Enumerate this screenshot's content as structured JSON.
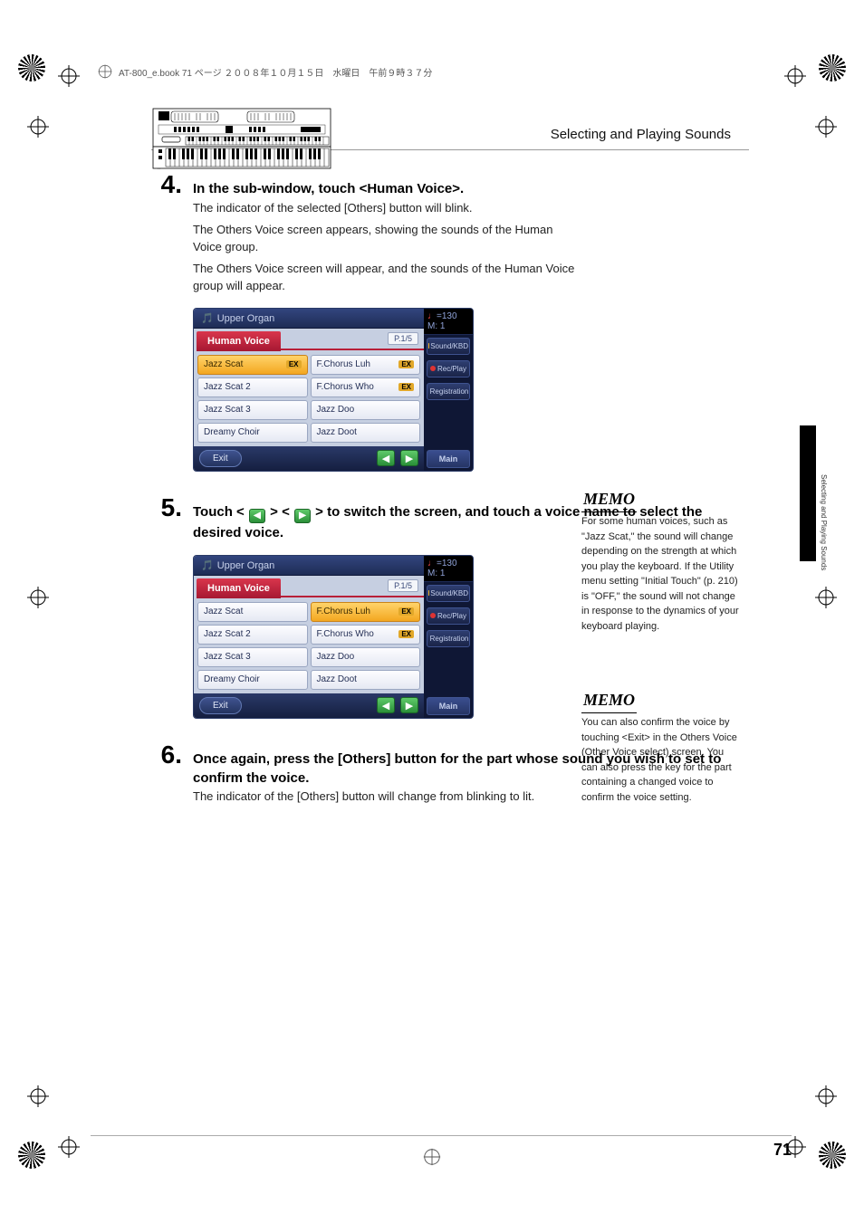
{
  "header": {
    "file_info": "AT-800_e.book  71 ページ  ２００８年１０月１５日　水曜日　午前９時３７分"
  },
  "section_title": "Selecting and Playing Sounds",
  "side_tab_text": "Selecting and Playing Sounds",
  "steps": [
    {
      "num": "4.",
      "title": "In the sub-window, touch <Human Voice>.",
      "body": [
        "The indicator of the selected [Others] button will blink.",
        "The Others Voice screen appears, showing the sounds of the Human Voice group.",
        "The Others Voice screen will appear, and the sounds of the Human Voice group will appear."
      ]
    },
    {
      "num": "5.",
      "title_pre": "Touch < ",
      "title_mid": " > < ",
      "title_post": " > to switch the screen, and touch a voice name to select the desired voice.",
      "body": []
    },
    {
      "num": "6.",
      "title": "Once again, press the [Others] button for the part whose sound you wish to set to confirm the voice.",
      "body": [
        "The indicator of the [Others] button will change from blinking to lit."
      ]
    }
  ],
  "screenshot": {
    "header_title": "Upper Organ",
    "tab": "Human Voice",
    "page_indicator": "P.1/5",
    "tempo_note": "♩",
    "tempo_eq": "=130",
    "measure": "M:    1",
    "side_buttons": [
      "Sound/KBD",
      "Rec/Play",
      "Registration",
      "Main"
    ],
    "exit": "Exit",
    "badge": "EX",
    "voices1": {
      "left": [
        "Jazz Scat",
        "Jazz Scat 2",
        "Jazz Scat 3",
        "Dreamy Choir"
      ],
      "right": [
        "F.Chorus Luh",
        "F.Chorus Who",
        "Jazz Doo",
        "Jazz Doot"
      ],
      "active_left": 0,
      "right_badges": [
        0,
        1
      ]
    },
    "voices2": {
      "left": [
        "Jazz Scat",
        "Jazz Scat 2",
        "Jazz Scat 3",
        "Dreamy Choir"
      ],
      "right": [
        "F.Chorus Luh",
        "F.Chorus Who",
        "Jazz Doo",
        "Jazz Doot"
      ],
      "active_right": 0,
      "right_badges": [
        0,
        1
      ]
    },
    "colors": {
      "tab_red": "#b81f38",
      "panel_blue": "#1f2b55",
      "cell_bg": "#e5e9f3",
      "active_bg": "#f3a720",
      "arrow_green": "#2a8f38"
    }
  },
  "memos": [
    {
      "label": "MEMO",
      "text": "For some human voices, such as \"Jazz Scat,\" the sound will change depending on the strength at which you play the keyboard. If the Utility menu setting \"Initial Touch\" (p. 210) is \"OFF,\" the sound will not change in response to the dynamics of your keyboard playing."
    },
    {
      "label": "MEMO",
      "text": "You can also confirm the voice by touching <Exit> in the Others Voice (Other Voice select) screen. You can also press the key for the part containing a changed voice to confirm the voice setting."
    }
  ],
  "page_number": "71"
}
